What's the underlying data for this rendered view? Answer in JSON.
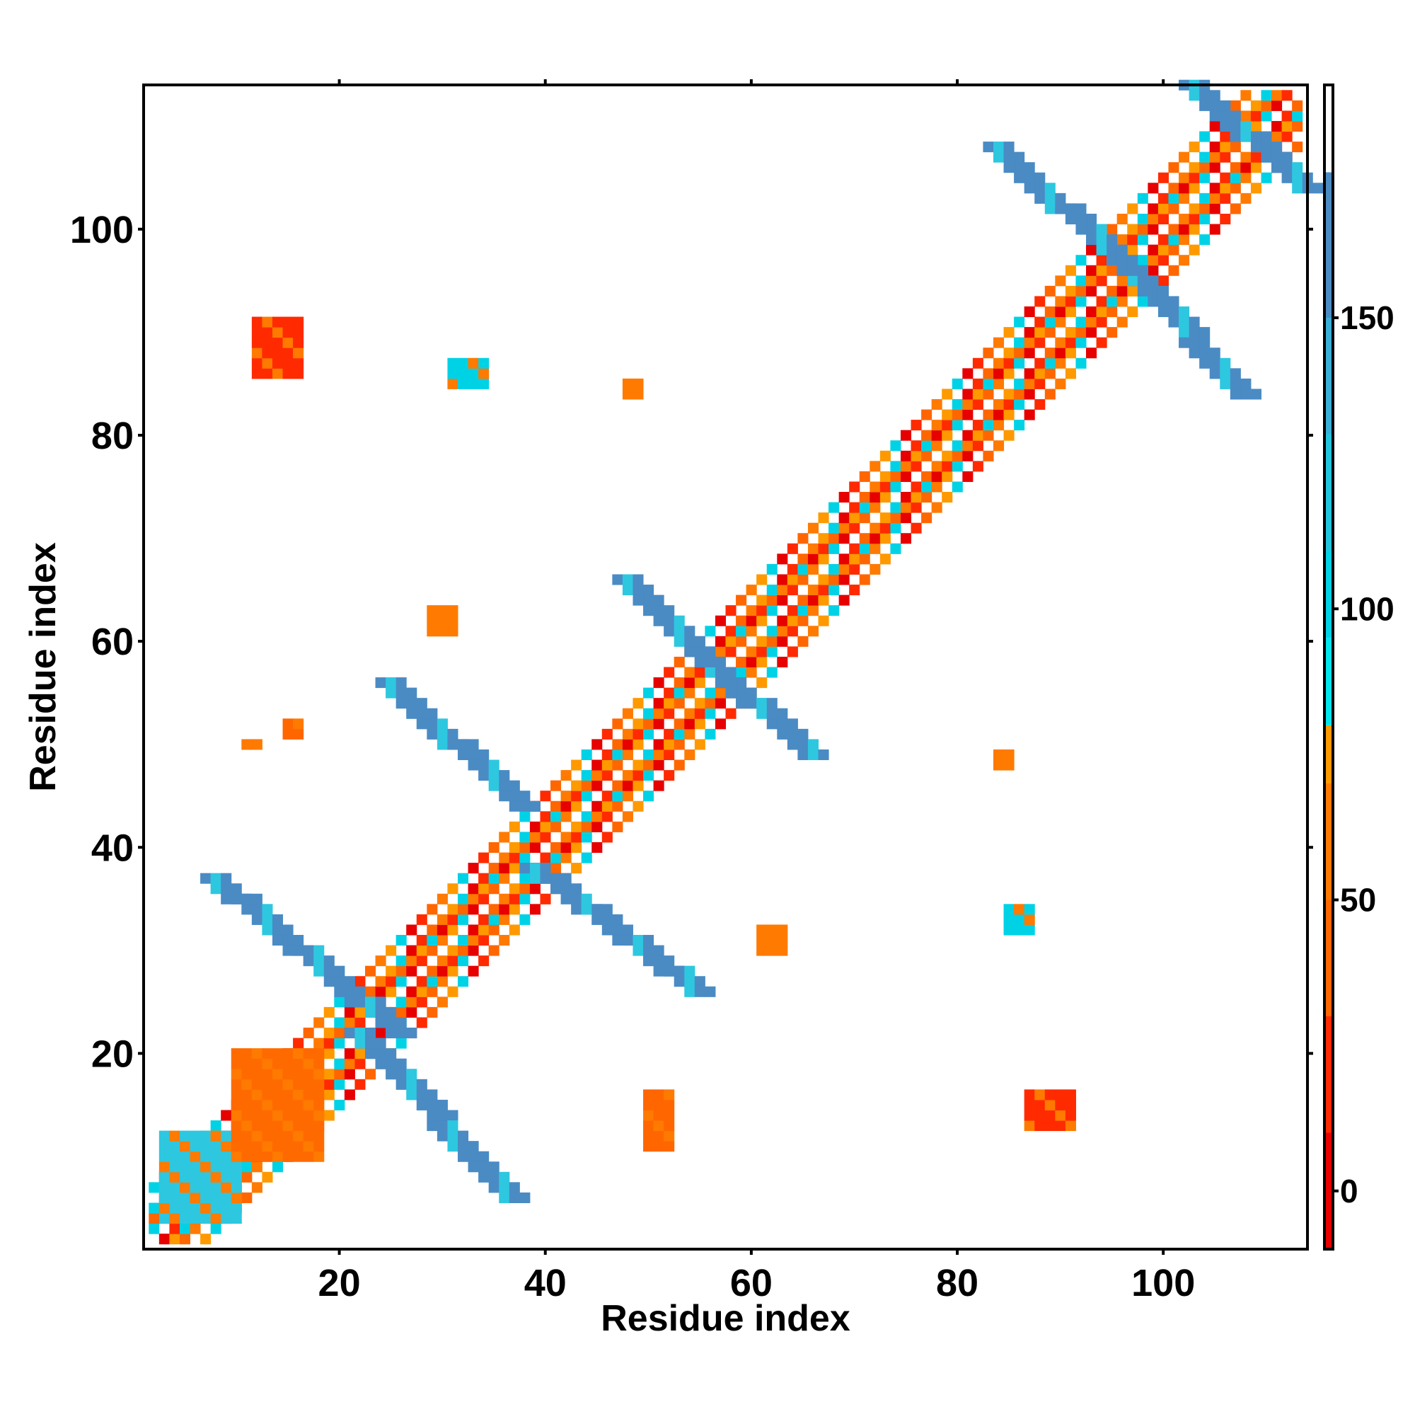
{
  "chart_data": {
    "type": "heatmap",
    "title": "",
    "xlabel": "Residue index",
    "ylabel": "Residue index",
    "xlim": [
      1,
      114
    ],
    "ylim": [
      1,
      114
    ],
    "x_ticks": [
      {
        "value": 20,
        "label": "20"
      },
      {
        "value": 40,
        "label": "40"
      },
      {
        "value": 60,
        "label": "60"
      },
      {
        "value": 80,
        "label": "80"
      },
      {
        "value": 100,
        "label": "100"
      }
    ],
    "y_ticks": [
      {
        "value": 20,
        "label": "20"
      },
      {
        "value": 40,
        "label": "40"
      },
      {
        "value": 60,
        "label": "60"
      },
      {
        "value": 80,
        "label": "80"
      },
      {
        "value": 100,
        "label": "100"
      }
    ],
    "colorbar": {
      "range": [
        -10,
        190
      ],
      "ticks": [
        {
          "value": 0,
          "label": "0"
        },
        {
          "value": 50,
          "label": "50"
        },
        {
          "value": 100,
          "label": "100"
        },
        {
          "value": 150,
          "label": "150"
        }
      ],
      "bands": [
        {
          "from": -10,
          "to": 10,
          "color": "#e60000"
        },
        {
          "from": 10,
          "to": 30,
          "color": "#ff2a00"
        },
        {
          "from": 30,
          "to": 50,
          "color": "#ff6600"
        },
        {
          "from": 50,
          "to": 70,
          "color": "#ff7a00"
        },
        {
          "from": 70,
          "to": 80,
          "color": "#ff9900"
        },
        {
          "from": 80,
          "to": 95,
          "color": "#00e5ee"
        },
        {
          "from": 95,
          "to": 110,
          "color": "#00d2e6"
        },
        {
          "from": 110,
          "to": 130,
          "color": "#22c4dd"
        },
        {
          "from": 130,
          "to": 150,
          "color": "#3aaed6"
        },
        {
          "from": 150,
          "to": 175,
          "color": "#4a8bc4"
        },
        {
          "from": 175,
          "to": 190,
          "color": "#ffffff"
        }
      ]
    },
    "grid": false,
    "patches": [
      {
        "x": [
          2,
          113
        ],
        "y": [
          2,
          113
        ],
        "kind": "diagonal"
      },
      {
        "x": [
          3,
          10
        ],
        "y": [
          4,
          12
        ],
        "color": "#2ec7e0"
      },
      {
        "x": [
          10,
          18
        ],
        "y": [
          10,
          20
        ],
        "color": "#ff6a00"
      },
      {
        "x": [
          22,
          37
        ],
        "y": [
          6,
          22
        ],
        "color": "#4a8bc4",
        "kind": "anti"
      },
      {
        "x": [
          8,
          26
        ],
        "y": [
          22,
          37
        ],
        "color": "#4a8bc4",
        "kind": "anti"
      },
      {
        "x": [
          39,
          55
        ],
        "y": [
          26,
          38
        ],
        "color": "#4a8bc4",
        "kind": "anti"
      },
      {
        "x": [
          25,
          38
        ],
        "y": [
          44,
          56
        ],
        "color": "#4a8bc4",
        "kind": "anti"
      },
      {
        "x": [
          56,
          66
        ],
        "y": [
          49,
          58
        ],
        "color": "#4a8bc4",
        "kind": "anti"
      },
      {
        "x": [
          48,
          56
        ],
        "y": [
          58,
          66
        ],
        "color": "#4a8bc4",
        "kind": "anti"
      },
      {
        "x": [
          97,
          108
        ],
        "y": [
          84,
          96
        ],
        "color": "#4a8bc4",
        "kind": "anti"
      },
      {
        "x": [
          84,
          97
        ],
        "y": [
          96,
          108
        ],
        "color": "#4a8bc4",
        "kind": "anti"
      },
      {
        "x": [
          103,
          114
        ],
        "y": [
          104,
          114
        ],
        "color": "#4a8bc4",
        "kind": "anti"
      },
      {
        "x": [
          12,
          16
        ],
        "y": [
          86,
          91
        ],
        "color": "#ff2a00"
      },
      {
        "x": [
          87,
          91
        ],
        "y": [
          13,
          16
        ],
        "color": "#ff2a00"
      },
      {
        "x": [
          31,
          34
        ],
        "y": [
          85,
          87
        ],
        "color": "#00d2e6"
      },
      {
        "x": [
          48,
          49
        ],
        "y": [
          84,
          85
        ],
        "color": "#ff7a00"
      },
      {
        "x": [
          29,
          31
        ],
        "y": [
          61,
          63
        ],
        "color": "#ff7a00"
      },
      {
        "x": [
          11,
          12
        ],
        "y": [
          50,
          50
        ],
        "color": "#ff7a00"
      },
      {
        "x": [
          15,
          16
        ],
        "y": [
          51,
          52
        ],
        "color": "#ff6600"
      },
      {
        "x": [
          84,
          85
        ],
        "y": [
          48,
          49
        ],
        "color": "#ff7a00"
      },
      {
        "x": [
          85,
          87
        ],
        "y": [
          32,
          34
        ],
        "color": "#00d2e6"
      },
      {
        "x": [
          61,
          63
        ],
        "y": [
          30,
          32
        ],
        "color": "#ff7a00"
      },
      {
        "x": [
          50,
          52
        ],
        "y": [
          11,
          16
        ],
        "color": "#ff6600"
      }
    ]
  }
}
